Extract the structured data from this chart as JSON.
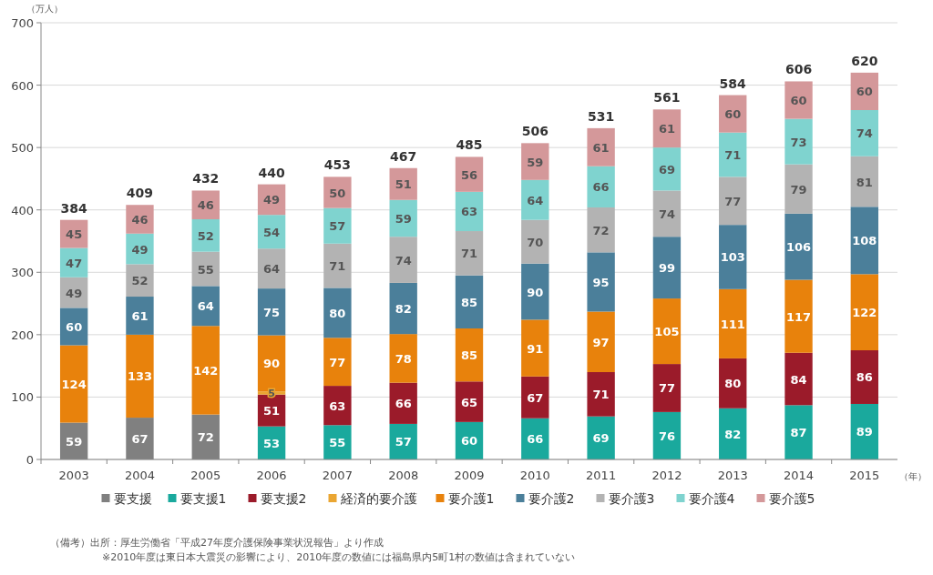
{
  "chart_data": {
    "type": "bar",
    "stacked": true,
    "ylabel": "（万人）",
    "xlabel": "（年）",
    "categories": [
      "2003",
      "2004",
      "2005",
      "2006",
      "2007",
      "2008",
      "2009",
      "2010",
      "2011",
      "2012",
      "2013",
      "2014",
      "2015"
    ],
    "series": [
      {
        "name": "要支援",
        "color": "#808080",
        "values": [
          59,
          67,
          72,
          null,
          null,
          null,
          null,
          null,
          null,
          null,
          null,
          null,
          null
        ]
      },
      {
        "name": "要支援1",
        "color": "#1aa99d",
        "values": [
          null,
          null,
          null,
          53,
          55,
          57,
          60,
          66,
          69,
          76,
          82,
          87,
          89
        ]
      },
      {
        "name": "要支援2",
        "color": "#9b1b2a",
        "values": [
          null,
          null,
          null,
          51,
          63,
          66,
          65,
          67,
          71,
          77,
          80,
          84,
          86
        ]
      },
      {
        "name": "経済的要介護",
        "color": "#eaa632",
        "values": [
          null,
          null,
          null,
          5,
          null,
          null,
          null,
          null,
          null,
          null,
          null,
          null,
          null
        ]
      },
      {
        "name": "要介護1",
        "color": "#e8820c",
        "values": [
          124,
          133,
          142,
          90,
          77,
          78,
          85,
          91,
          97,
          105,
          111,
          117,
          122
        ]
      },
      {
        "name": "要介護2",
        "color": "#4b7f9a",
        "values": [
          60,
          61,
          64,
          75,
          80,
          82,
          85,
          90,
          95,
          99,
          103,
          106,
          108
        ]
      },
      {
        "name": "要介護3",
        "color": "#b3b3b3",
        "values": [
          49,
          52,
          55,
          64,
          71,
          74,
          71,
          70,
          72,
          74,
          77,
          79,
          81
        ]
      },
      {
        "name": "要介護4",
        "color": "#7fd3cf",
        "values": [
          47,
          49,
          52,
          54,
          57,
          59,
          63,
          64,
          66,
          69,
          71,
          73,
          74
        ]
      },
      {
        "name": "要介護5",
        "color": "#d4989a",
        "values": [
          45,
          46,
          46,
          49,
          50,
          51,
          56,
          59,
          61,
          61,
          60,
          60,
          60
        ]
      }
    ],
    "totals": [
      "384",
      "409",
      "432",
      "440",
      "453",
      "467",
      "485",
      "506",
      "531",
      "561",
      "584",
      "606",
      "620"
    ],
    "data_labels": true,
    "ylim": [
      0,
      700
    ],
    "yticks": [
      0,
      100,
      200,
      300,
      400,
      500,
      600,
      700
    ],
    "grid": "y",
    "legend": "bottom",
    "annotations": [
      "（備考）出所：厚生労働省「平成27年度介護保険事業状況報告」より作成",
      "※2010年度は東日本大震災の影響により、2010年度の数値には福島県内5町1村の数値は含まれていない"
    ]
  }
}
